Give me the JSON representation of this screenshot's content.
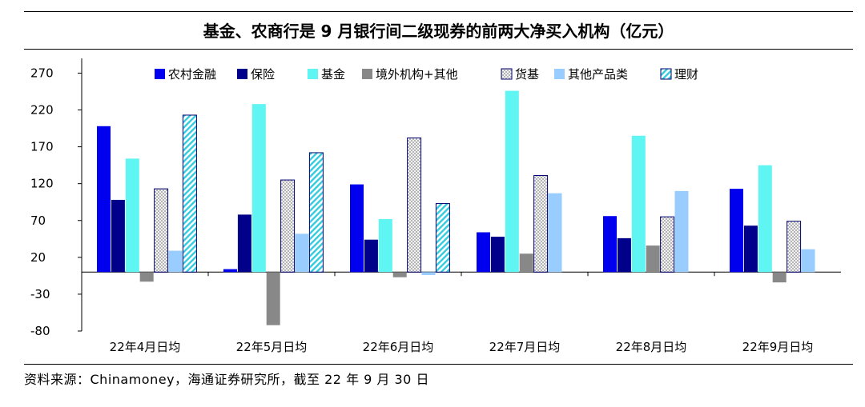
{
  "chart_data": {
    "type": "bar",
    "title": "基金、农商行是 9 月银行间二级现券的前两大净买入机构（亿元）",
    "categories": [
      "22年4月日均",
      "22年5月日均",
      "22年6月日均",
      "22年7月日均",
      "22年8月日均",
      "22年9月日均"
    ],
    "ylim": [
      -80,
      290
    ],
    "yticks": [
      270,
      220,
      170,
      120,
      70,
      20,
      -30,
      -80
    ],
    "grid": false,
    "legend_position": "top",
    "series": [
      {
        "name": "农村金融",
        "color": "#0000ee",
        "pattern": "solid",
        "values": [
          198,
          4,
          119,
          54,
          76,
          113
        ]
      },
      {
        "name": "保险",
        "color": "#00008b",
        "pattern": "solid",
        "values": [
          98,
          78,
          44,
          48,
          46,
          63
        ]
      },
      {
        "name": "基金",
        "color": "#5ff5f2",
        "pattern": "solid",
        "values": [
          154,
          228,
          72,
          246,
          185,
          145
        ]
      },
      {
        "name": "境外机构+其他",
        "color": "#888888",
        "pattern": "solid",
        "values": [
          -13,
          -72,
          -7,
          25,
          36,
          -14
        ]
      },
      {
        "name": "货基",
        "color": "#ffffff",
        "pattern": "crosshatch",
        "values": [
          113,
          125,
          182,
          131,
          75,
          69
        ]
      },
      {
        "name": "其他产品类",
        "color": "#99ccff",
        "pattern": "solid",
        "values": [
          29,
          52,
          -4,
          107,
          110,
          31
        ]
      },
      {
        "name": "理财",
        "color": "#33ccdd",
        "pattern": "diagonal",
        "values": [
          213,
          162,
          93,
          0,
          0,
          0
        ]
      }
    ]
  },
  "source": "资料来源：Chinamoney，海通证券研究所，截至 22 年 9 月 30 日"
}
